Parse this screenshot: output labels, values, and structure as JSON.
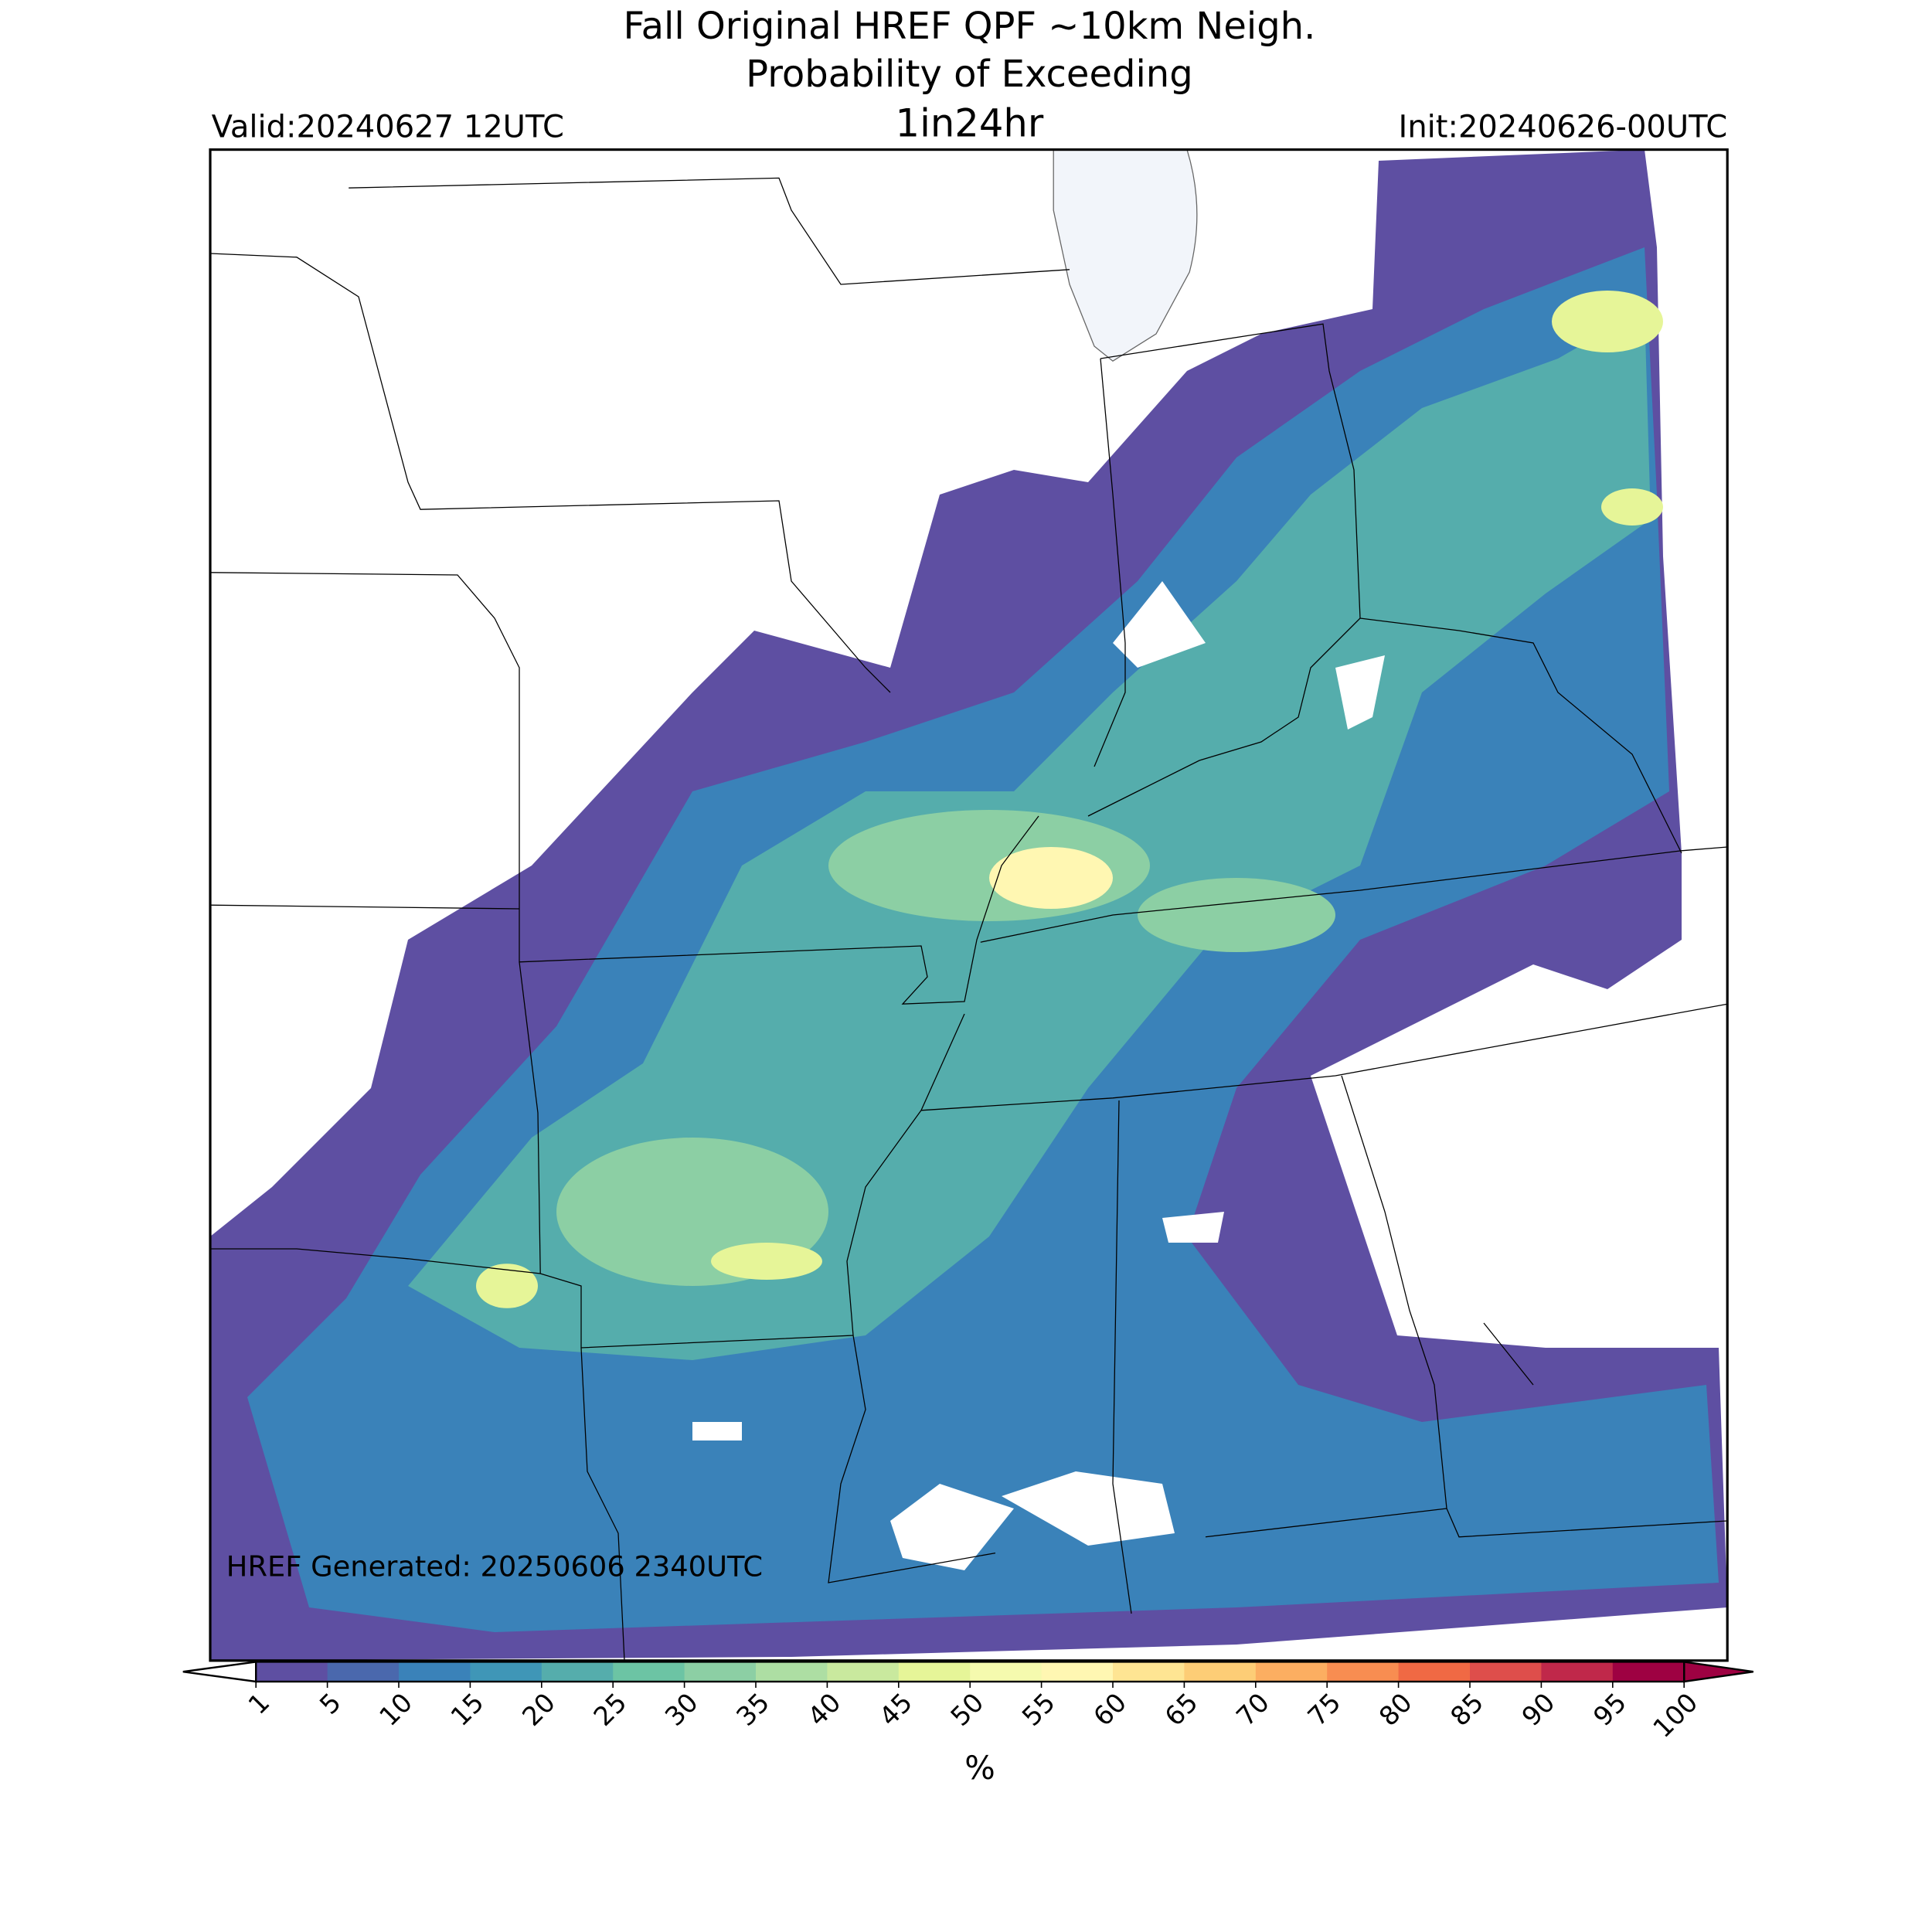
{
  "header": {
    "title": [
      "Fall Original HREF QPF ~10km Neigh.",
      "Probability of Exceeding"
    ],
    "subtitle": "1in24hr",
    "valid": "Valid:20240627 12UTC",
    "init": "Init:20240626-00UTC"
  },
  "map": {
    "annotation": "HREF Generated: 20250606 2340UTC"
  },
  "colorbar": {
    "ticks": [
      1,
      5,
      10,
      15,
      20,
      25,
      30,
      35,
      40,
      45,
      50,
      55,
      60,
      65,
      70,
      75,
      80,
      85,
      90,
      95,
      100
    ],
    "colors": [
      "#5e4fa2",
      "#4a68ad",
      "#3a82b9",
      "#3f96b7",
      "#55adac",
      "#6cc4a4",
      "#8ccfa4",
      "#addea3",
      "#c9e99e",
      "#e6f598",
      "#f5faae",
      "#fff7b2",
      "#fee593",
      "#fdcd76",
      "#fcae61",
      "#f88d51",
      "#f06944",
      "#de4e4b",
      "#c0284a",
      "#9e0142"
    ],
    "label": "%"
  }
}
